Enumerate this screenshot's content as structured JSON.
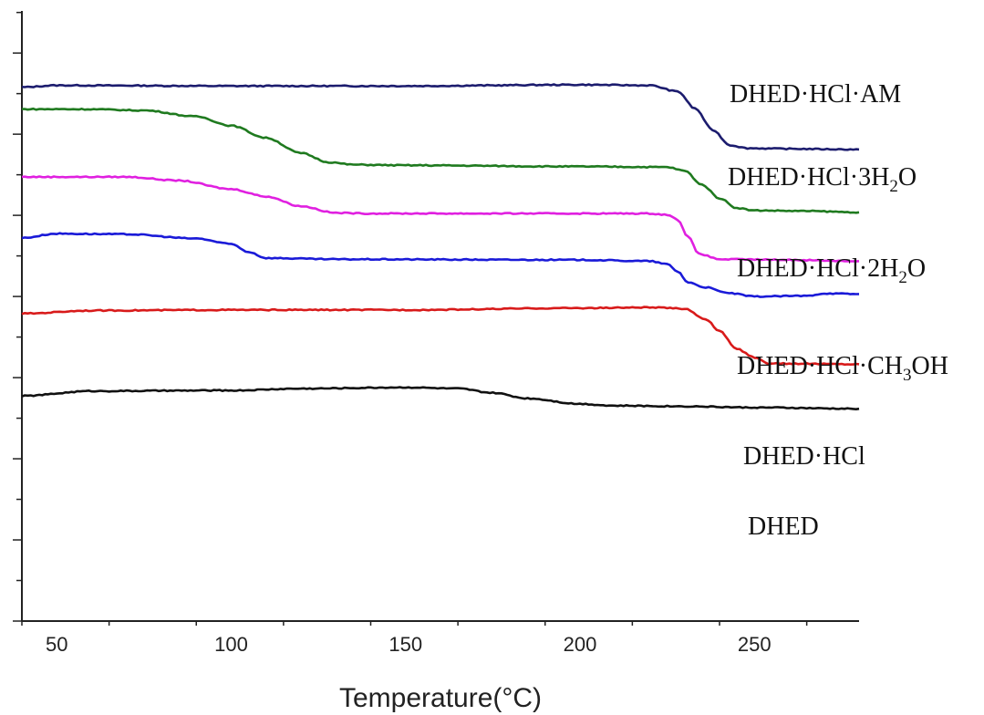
{
  "chart_data": {
    "type": "line",
    "title": "",
    "xlabel": "Temperature(°C)",
    "ylabel": "",
    "xlim": [
      40,
      280
    ],
    "ylim": [
      0,
      100
    ],
    "x_ticks": [
      50,
      100,
      150,
      200,
      250
    ],
    "y_tick_labels_shown": false,
    "grid": false,
    "legend": "inline labels at right end of each curve",
    "series": [
      {
        "name": "DHED·HCl·AM",
        "label_parts": [
          {
            "t": "DHED·HCl·AM"
          }
        ],
        "color": "#1c1c6e",
        "points": [
          [
            40,
            87.5
          ],
          [
            50,
            87.8
          ],
          [
            100,
            87.7
          ],
          [
            150,
            87.7
          ],
          [
            200,
            87.9
          ],
          [
            220,
            87.8
          ],
          [
            228,
            86.8
          ],
          [
            233,
            84
          ],
          [
            238,
            80.5
          ],
          [
            243,
            78
          ],
          [
            248,
            77.5
          ],
          [
            260,
            77.4
          ],
          [
            280,
            77.3
          ]
        ]
      },
      {
        "name": "DHED·HCl·3H2O",
        "label_parts": [
          {
            "t": "DHED·HCl·3H"
          },
          {
            "t": "2",
            "sub": true
          },
          {
            "t": "O"
          }
        ],
        "color": "#1f7a1f",
        "points": [
          [
            40,
            83.9
          ],
          [
            58,
            83.9
          ],
          [
            75,
            83.7
          ],
          [
            90,
            82.7
          ],
          [
            100,
            81.2
          ],
          [
            110,
            79.2
          ],
          [
            120,
            76.7
          ],
          [
            128,
            75.2
          ],
          [
            135,
            74.8
          ],
          [
            150,
            74.7
          ],
          [
            200,
            74.5
          ],
          [
            225,
            74.4
          ],
          [
            230,
            73.8
          ],
          [
            235,
            71.5
          ],
          [
            240,
            69.3
          ],
          [
            245,
            67.7
          ],
          [
            250,
            67.3
          ],
          [
            265,
            67.2
          ],
          [
            280,
            67.0
          ]
        ]
      },
      {
        "name": "DHED·HCl·2H2O",
        "label_parts": [
          {
            "t": "DHED·HCl·2H"
          },
          {
            "t": "2",
            "sub": true
          },
          {
            "t": "O"
          }
        ],
        "color": "#e020e0",
        "points": [
          [
            40,
            72.8
          ],
          [
            70,
            72.8
          ],
          [
            85,
            72.2
          ],
          [
            100,
            70.8
          ],
          [
            110,
            69.6
          ],
          [
            120,
            68.0
          ],
          [
            130,
            66.9
          ],
          [
            140,
            66.8
          ],
          [
            160,
            66.8
          ],
          [
            200,
            66.8
          ],
          [
            220,
            66.8
          ],
          [
            225,
            66.6
          ],
          [
            228,
            65.8
          ],
          [
            231,
            63
          ],
          [
            234,
            60.2
          ],
          [
            240,
            59.3
          ],
          [
            260,
            59.2
          ],
          [
            280,
            59.0
          ]
        ]
      },
      {
        "name": "DHED·HCl·CH3OH",
        "label_parts": [
          {
            "t": "DHED·HCl·CH"
          },
          {
            "t": "3",
            "sub": true
          },
          {
            "t": "OH"
          }
        ],
        "color": "#1a1ad8",
        "points": [
          [
            40,
            62.8
          ],
          [
            50,
            63.5
          ],
          [
            70,
            63.4
          ],
          [
            90,
            62.7
          ],
          [
            100,
            61.8
          ],
          [
            105,
            60.5
          ],
          [
            110,
            59.5
          ],
          [
            130,
            59.3
          ],
          [
            200,
            59.2
          ],
          [
            220,
            59.0
          ],
          [
            225,
            58.5
          ],
          [
            228,
            57.3
          ],
          [
            231,
            55.5
          ],
          [
            236,
            54.7
          ],
          [
            242,
            53.8
          ],
          [
            250,
            53.2
          ],
          [
            265,
            53.3
          ],
          [
            270,
            53.7
          ],
          [
            280,
            53.6
          ]
        ]
      },
      {
        "name": "DHED·HCl",
        "label_parts": [
          {
            "t": "DHED·HCl"
          }
        ],
        "color": "#d81a1a",
        "points": [
          [
            40,
            50.4
          ],
          [
            60,
            50.9
          ],
          [
            100,
            51.0
          ],
          [
            150,
            51.0
          ],
          [
            200,
            51.3
          ],
          [
            220,
            51.4
          ],
          [
            230,
            51.2
          ],
          [
            236,
            49.5
          ],
          [
            240,
            47.5
          ],
          [
            245,
            44.6
          ],
          [
            250,
            43.2
          ],
          [
            254,
            42.2
          ],
          [
            260,
            42.2
          ],
          [
            280,
            42.1
          ]
        ]
      },
      {
        "name": "DHED",
        "label_parts": [
          {
            "t": "DHED"
          }
        ],
        "color": "#111111",
        "points": [
          [
            40,
            36.9
          ],
          [
            60,
            37.7
          ],
          [
            100,
            37.8
          ],
          [
            120,
            38.1
          ],
          [
            150,
            38.3
          ],
          [
            165,
            38.1
          ],
          [
            175,
            37.4
          ],
          [
            185,
            36.5
          ],
          [
            200,
            35.6
          ],
          [
            210,
            35.3
          ],
          [
            230,
            35.2
          ],
          [
            250,
            35.0
          ],
          [
            280,
            34.8
          ]
        ]
      }
    ]
  }
}
